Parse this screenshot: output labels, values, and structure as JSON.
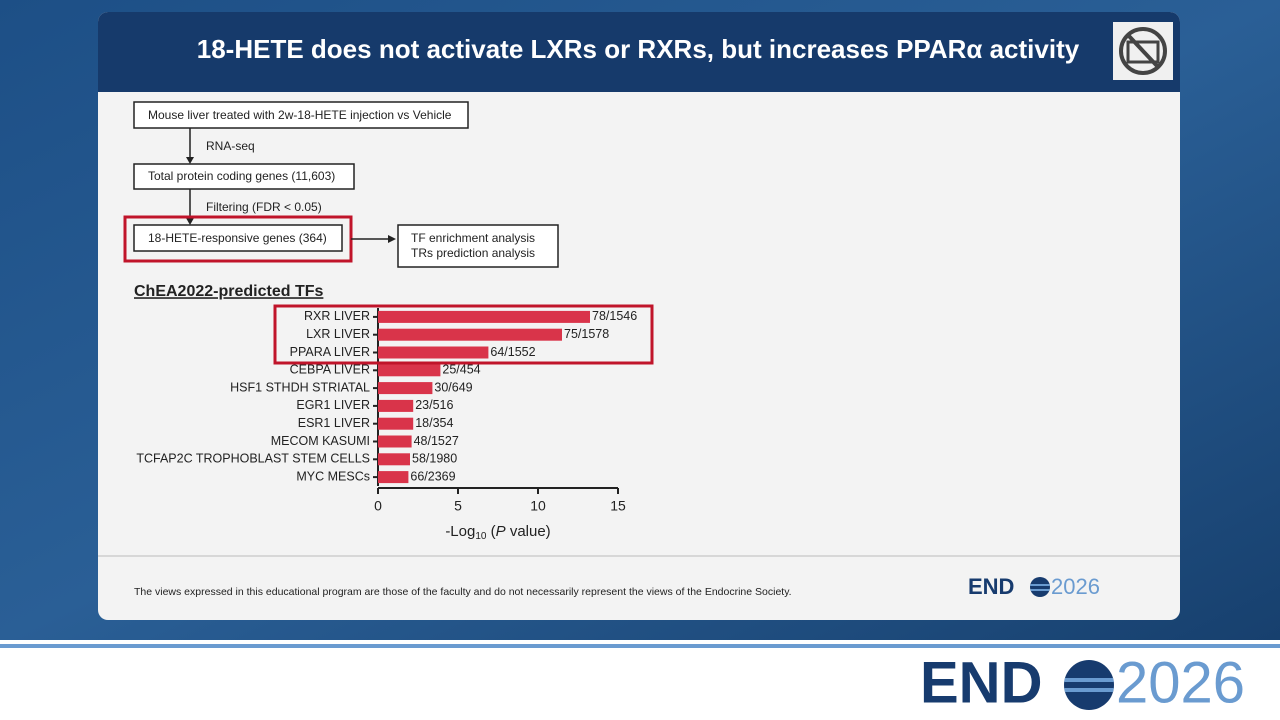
{
  "header": {
    "title": "18-HETE does not activate LXRs or RXRs, but increases PPARα activity"
  },
  "flowchart": {
    "step1": "Mouse liver treated with 2w-18-HETE injection vs Vehicle",
    "arrow1": "RNA-seq",
    "step2": "Total protein coding genes (11,603)",
    "arrow2": "Filtering (FDR < 0.05)",
    "step3": "18-HETE-responsive genes (364)",
    "step4": [
      "TF enrichment analysis",
      "TRs prediction analysis"
    ]
  },
  "chart_data": {
    "type": "barh",
    "title": "ChEA2022-predicted TFs",
    "categories": [
      "RXR LIVER",
      "LXR LIVER",
      "PPARA LIVER",
      "CEBPA LIVER",
      "HSF1 STHDH STRIATAL",
      "EGR1 LIVER",
      "ESR1 LIVER",
      "MECOM KASUMI",
      "TCFAP2C TROPHOBLAST STEM CELLS",
      "MYC MESCs"
    ],
    "values": [
      13.25,
      11.5,
      6.9,
      3.9,
      3.4,
      2.2,
      2.2,
      2.1,
      2.0,
      1.9
    ],
    "bar_annotations": [
      "78/1546",
      "75/1578",
      "64/1552",
      "25/454",
      "30/649",
      "23/516",
      "18/354",
      "48/1527",
      "58/1980",
      "66/2369"
    ],
    "color": "#d9344a",
    "xlim": [
      0,
      15
    ],
    "xticks": [
      0,
      5,
      10,
      15
    ],
    "x_label_parts": [
      "-Log",
      "10",
      " (",
      "P",
      " value)"
    ]
  },
  "footer": {
    "disclaimer": "The views expressed in this educational program are those of the faculty and do not necessarily represent the views of the Endocrine Society.",
    "logo_left": "END",
    "logo_right": "2026"
  }
}
